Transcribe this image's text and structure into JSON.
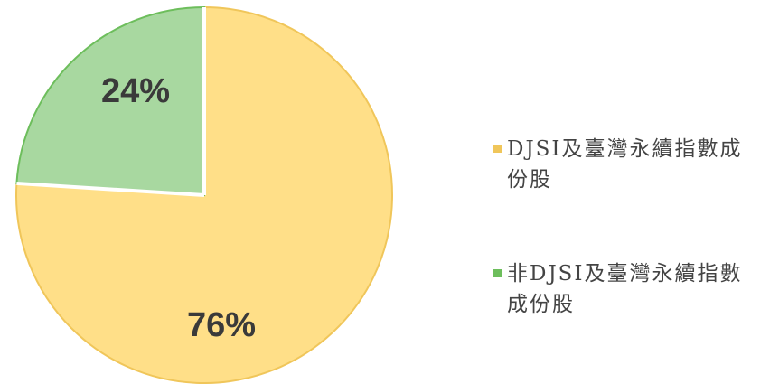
{
  "chart_data": {
    "type": "pie",
    "categories": [
      "DJSI及臺灣永續指數成份股",
      "非DJSI及臺灣永續指數成份股"
    ],
    "values": [
      76,
      24
    ],
    "value_labels": [
      "76%",
      "24%"
    ],
    "colors": [
      "#FFDF88",
      "#A8D8A0"
    ],
    "edge_colors": [
      "#F0C65A",
      "#6DBE5C"
    ],
    "legend": "right"
  }
}
